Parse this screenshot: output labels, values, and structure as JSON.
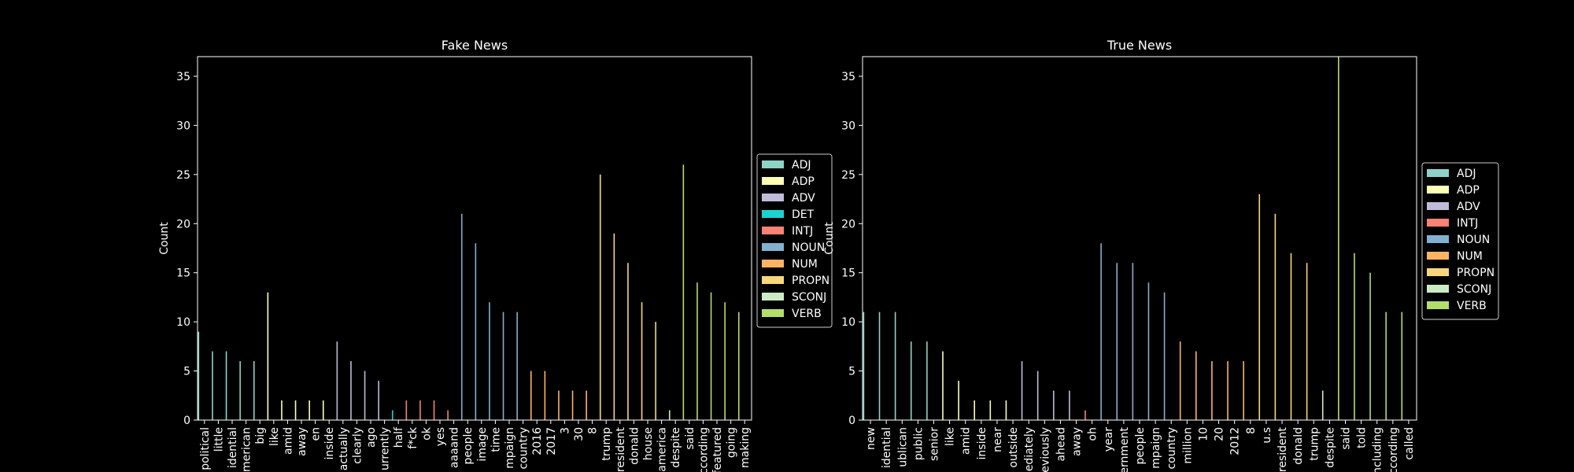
{
  "chart_data": [
    {
      "type": "bar",
      "title": "Fake News",
      "ylabel": "Count",
      "xlabel": "",
      "ylim": [
        0,
        37
      ],
      "yticks": [
        "0",
        "5",
        "10",
        "15",
        "20",
        "25",
        "30",
        "35"
      ],
      "legend_placement": "right",
      "legend": [
        {
          "name": "ADJ",
          "color": "#8dd3c7"
        },
        {
          "name": "ADP",
          "color": "#feffb3"
        },
        {
          "name": "ADV",
          "color": "#bfbbd9"
        },
        {
          "name": "DET",
          "color": "#19d3d3"
        },
        {
          "name": "INTJ",
          "color": "#fa8174"
        },
        {
          "name": "NOUN",
          "color": "#81b1d2"
        },
        {
          "name": "NUM",
          "color": "#fdb462"
        },
        {
          "name": "PROPN",
          "color": "#f7d77a"
        },
        {
          "name": "SCONJ",
          "color": "#ccebc4"
        },
        {
          "name": "VERB",
          "color": "#b3de69"
        }
      ],
      "bars": [
        {
          "label": "political",
          "value": 9,
          "pos": "ADJ"
        },
        {
          "label": "little",
          "value": 7,
          "pos": "ADJ"
        },
        {
          "label": "idential",
          "value": 7,
          "pos": "ADJ"
        },
        {
          "label": "merican",
          "value": 6,
          "pos": "ADJ"
        },
        {
          "label": "big",
          "value": 6,
          "pos": "ADJ"
        },
        {
          "label": "like",
          "value": 13,
          "pos": "ADP"
        },
        {
          "label": "amid",
          "value": 2,
          "pos": "ADP"
        },
        {
          "label": "away",
          "value": 2,
          "pos": "ADP"
        },
        {
          "label": "en",
          "value": 2,
          "pos": "ADP"
        },
        {
          "label": "inside",
          "value": 2,
          "pos": "ADP"
        },
        {
          "label": "actually",
          "value": 8,
          "pos": "ADV"
        },
        {
          "label": "clearly",
          "value": 6,
          "pos": "ADV"
        },
        {
          "label": "ago",
          "value": 5,
          "pos": "ADV"
        },
        {
          "label": "urrently",
          "value": 4,
          "pos": "ADV"
        },
        {
          "label": "half",
          "value": 1,
          "pos": "DET"
        },
        {
          "label": "f*ck",
          "value": 2,
          "pos": "INTJ"
        },
        {
          "label": "ok",
          "value": 2,
          "pos": "INTJ"
        },
        {
          "label": "yes",
          "value": 2,
          "pos": "INTJ"
        },
        {
          "label": "aaaand",
          "value": 1,
          "pos": "INTJ"
        },
        {
          "label": "people",
          "value": 21,
          "pos": "NOUN"
        },
        {
          "label": "image",
          "value": 18,
          "pos": "NOUN"
        },
        {
          "label": "time",
          "value": 12,
          "pos": "NOUN"
        },
        {
          "label": "mpaign",
          "value": 11,
          "pos": "NOUN"
        },
        {
          "label": "country",
          "value": 11,
          "pos": "NOUN"
        },
        {
          "label": "2016",
          "value": 5,
          "pos": "NUM"
        },
        {
          "label": "2017",
          "value": 5,
          "pos": "NUM"
        },
        {
          "label": "3",
          "value": 3,
          "pos": "NUM"
        },
        {
          "label": "30",
          "value": 3,
          "pos": "NUM"
        },
        {
          "label": "8",
          "value": 3,
          "pos": "NUM"
        },
        {
          "label": "trump",
          "value": 25,
          "pos": "PROPN"
        },
        {
          "label": "resident",
          "value": 19,
          "pos": "PROPN"
        },
        {
          "label": "donald",
          "value": 16,
          "pos": "PROPN"
        },
        {
          "label": "house",
          "value": 12,
          "pos": "PROPN"
        },
        {
          "label": "america",
          "value": 10,
          "pos": "PROPN"
        },
        {
          "label": "despite",
          "value": 1,
          "pos": "SCONJ"
        },
        {
          "label": "said",
          "value": 26,
          "pos": "VERB"
        },
        {
          "label": "ccording",
          "value": 14,
          "pos": "VERB"
        },
        {
          "label": "featured",
          "value": 13,
          "pos": "VERB"
        },
        {
          "label": "going",
          "value": 12,
          "pos": "VERB"
        },
        {
          "label": "making",
          "value": 11,
          "pos": "VERB"
        }
      ]
    },
    {
      "type": "bar",
      "title": "True News",
      "ylabel": "Count",
      "xlabel": "",
      "ylim": [
        0,
        37
      ],
      "yticks": [
        "0",
        "5",
        "10",
        "15",
        "20",
        "25",
        "30",
        "35"
      ],
      "legend_placement": "right",
      "legend": [
        {
          "name": "ADJ",
          "color": "#8dd3c7"
        },
        {
          "name": "ADP",
          "color": "#feffb3"
        },
        {
          "name": "ADV",
          "color": "#bfbbd9"
        },
        {
          "name": "INTJ",
          "color": "#fa8174"
        },
        {
          "name": "NOUN",
          "color": "#81b1d2"
        },
        {
          "name": "NUM",
          "color": "#fdb462"
        },
        {
          "name": "PROPN",
          "color": "#f7d77a"
        },
        {
          "name": "SCONJ",
          "color": "#ccebc4"
        },
        {
          "name": "VERB",
          "color": "#b3de69"
        }
      ],
      "bars": [
        {
          "label": "new",
          "value": 11,
          "pos": "ADJ"
        },
        {
          "label": "idential",
          "value": 11,
          "pos": "ADJ"
        },
        {
          "label": "ublican",
          "value": 11,
          "pos": "ADJ"
        },
        {
          "label": "public",
          "value": 8,
          "pos": "ADJ"
        },
        {
          "label": "senior",
          "value": 8,
          "pos": "ADJ"
        },
        {
          "label": "like",
          "value": 7,
          "pos": "ADP"
        },
        {
          "label": "amid",
          "value": 4,
          "pos": "ADP"
        },
        {
          "label": "inside",
          "value": 2,
          "pos": "ADP"
        },
        {
          "label": "near",
          "value": 2,
          "pos": "ADP"
        },
        {
          "label": "outside",
          "value": 2,
          "pos": "ADP"
        },
        {
          "label": "ediately",
          "value": 6,
          "pos": "ADV"
        },
        {
          "label": "eviously",
          "value": 5,
          "pos": "ADV"
        },
        {
          "label": "ahead",
          "value": 3,
          "pos": "ADV"
        },
        {
          "label": "away",
          "value": 3,
          "pos": "ADV"
        },
        {
          "label": "oh",
          "value": 1,
          "pos": "INTJ"
        },
        {
          "label": "year",
          "value": 18,
          "pos": "NOUN"
        },
        {
          "label": "ernment",
          "value": 16,
          "pos": "NOUN"
        },
        {
          "label": "people",
          "value": 16,
          "pos": "NOUN"
        },
        {
          "label": "mpaign",
          "value": 14,
          "pos": "NOUN"
        },
        {
          "label": "country",
          "value": 13,
          "pos": "NOUN"
        },
        {
          "label": "million",
          "value": 8,
          "pos": "NUM"
        },
        {
          "label": "10",
          "value": 7,
          "pos": "NUM"
        },
        {
          "label": "20",
          "value": 6,
          "pos": "NUM"
        },
        {
          "label": "2012",
          "value": 6,
          "pos": "NUM"
        },
        {
          "label": "8",
          "value": 6,
          "pos": "NUM"
        },
        {
          "label": "u.s",
          "value": 23,
          "pos": "PROPN"
        },
        {
          "label": "resident",
          "value": 21,
          "pos": "PROPN"
        },
        {
          "label": "donald",
          "value": 17,
          "pos": "PROPN"
        },
        {
          "label": "trump",
          "value": 16,
          "pos": "PROPN"
        },
        {
          "label": "despite",
          "value": 3,
          "pos": "SCONJ"
        },
        {
          "label": "said",
          "value": 37,
          "pos": "VERB"
        },
        {
          "label": "told",
          "value": 17,
          "pos": "VERB"
        },
        {
          "label": "ncluding",
          "value": 15,
          "pos": "VERB"
        },
        {
          "label": "ccording",
          "value": 11,
          "pos": "VERB"
        },
        {
          "label": "called",
          "value": 11,
          "pos": "VERB"
        }
      ]
    }
  ]
}
